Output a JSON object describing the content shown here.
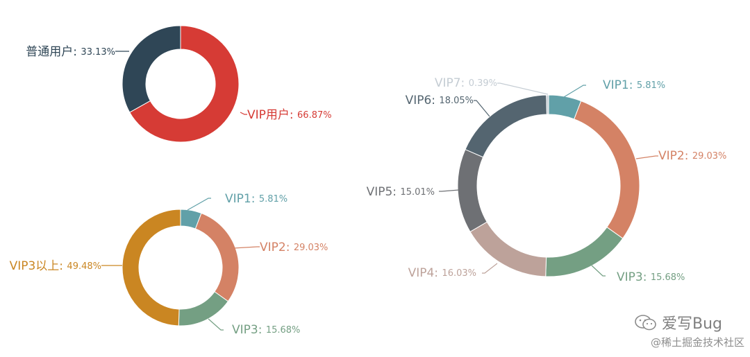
{
  "chart_data": [
    {
      "type": "pie",
      "subtype": "donut",
      "labels": [
        "VIP用户",
        "普通用户"
      ],
      "values": [
        66.87,
        33.13
      ],
      "value_labels": [
        "66.87%",
        "33.13%"
      ],
      "colors": [
        "#d63b35",
        "#2f4656"
      ]
    },
    {
      "type": "pie",
      "subtype": "donut",
      "labels": [
        "VIP1",
        "VIP2",
        "VIP3",
        "VIP3以上"
      ],
      "values": [
        5.81,
        29.03,
        15.68,
        49.48
      ],
      "value_labels": [
        "5.81%",
        "29.03%",
        "15.68%",
        "49.48%"
      ],
      "colors": [
        "#61a0a8",
        "#d48265",
        "#749f83",
        "#ca8622"
      ]
    },
    {
      "type": "pie",
      "subtype": "donut",
      "labels": [
        "VIP1",
        "VIP2",
        "VIP3",
        "VIP4",
        "VIP5",
        "VIP6",
        "VIP7"
      ],
      "values": [
        5.81,
        29.03,
        15.68,
        16.03,
        15.01,
        18.05,
        0.39
      ],
      "value_labels": [
        "5.81%",
        "29.03%",
        "15.68%",
        "16.03%",
        "15.01%",
        "18.05%",
        "0.39%"
      ],
      "colors": [
        "#61a0a8",
        "#d48265",
        "#749f83",
        "#bda29a",
        "#6e7074",
        "#546570",
        "#c4ccd3"
      ]
    }
  ],
  "watermark": {
    "line1": "爱写Bug",
    "line2": "@稀土掘金技术社区",
    "icon": "wechat-icon"
  }
}
